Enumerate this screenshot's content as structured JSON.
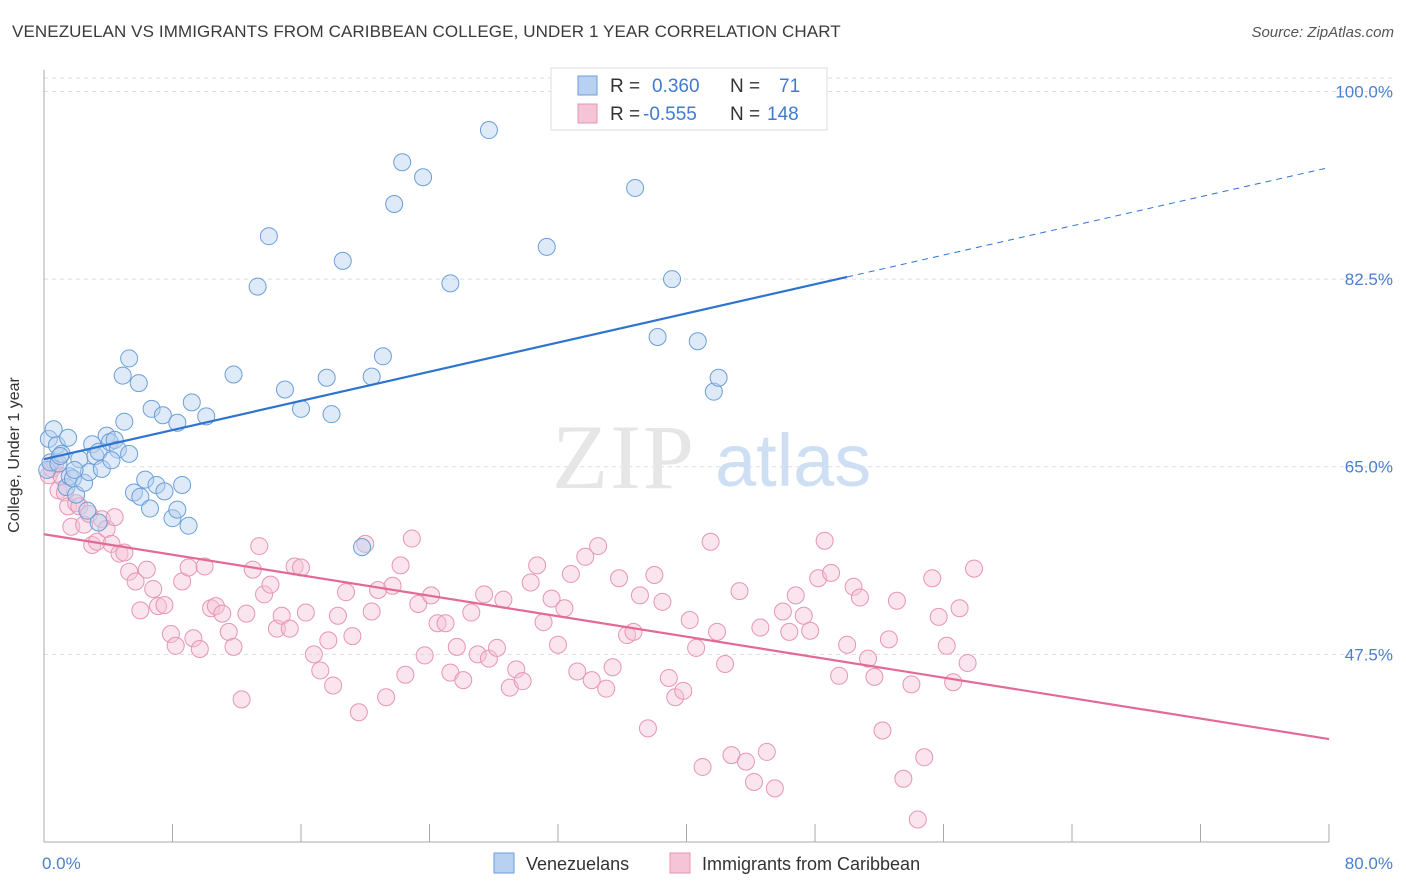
{
  "title": "VENEZUELAN VS IMMIGRANTS FROM CARIBBEAN COLLEGE, UNDER 1 YEAR CORRELATION CHART",
  "source": "Source: ZipAtlas.com",
  "watermark": {
    "zip": "ZIP",
    "atlas": "atlas"
  },
  "colors": {
    "blue": "#6a9fd8",
    "blue_fill": "#b8d1f0",
    "blue_line": "#2e74cf",
    "pink": "#e895b3",
    "pink_fill": "#f5c4d6",
    "pink_line": "#e36a97",
    "tick_label": "#4a7fd0",
    "grid": "#dddddd"
  },
  "legend": {
    "rows": [
      {
        "r_label": "R =",
        "r_value": "0.360",
        "n_label": "N =",
        "n_value": "71"
      },
      {
        "r_label": "R =",
        "r_value": "-0.555",
        "n_label": "N =",
        "n_value": "148"
      }
    ]
  },
  "chart_data": {
    "type": "scatter",
    "title": "VENEZUELAN VS IMMIGRANTS FROM CARIBBEAN COLLEGE, UNDER 1 YEAR CORRELATION CHART",
    "xlabel": "",
    "ylabel": "College, Under 1 year",
    "xlim": [
      0,
      80
    ],
    "ylim": [
      30,
      102
    ],
    "x_tick_labels": [
      "0.0%",
      "80.0%"
    ],
    "y_ticks": [
      47.5,
      65.0,
      82.5,
      100.0
    ],
    "y_tick_labels": [
      "47.5%",
      "65.0%",
      "82.5%",
      "100.0%"
    ],
    "grid": true,
    "legend_position": "top-center",
    "series": [
      {
        "name": "Venezuelans",
        "color": "#6a9fd8",
        "points": [
          [
            0.2,
            64.7
          ],
          [
            0.3,
            67.6
          ],
          [
            0.4,
            65.4
          ],
          [
            0.6,
            68.5
          ],
          [
            0.8,
            67.0
          ],
          [
            0.9,
            65.3
          ],
          [
            1.1,
            66.2
          ],
          [
            1.4,
            63.1
          ],
          [
            1.5,
            67.7
          ],
          [
            1.6,
            64.1
          ],
          [
            1.8,
            63.9
          ],
          [
            2.0,
            62.4
          ],
          [
            2.2,
            65.7
          ],
          [
            2.5,
            63.5
          ],
          [
            2.8,
            64.5
          ],
          [
            3.0,
            67.1
          ],
          [
            3.2,
            66.0
          ],
          [
            3.4,
            66.4
          ],
          [
            3.6,
            64.8
          ],
          [
            3.9,
            67.9
          ],
          [
            4.1,
            67.3
          ],
          [
            4.4,
            67.5
          ],
          [
            4.6,
            66.6
          ],
          [
            5.0,
            69.2
          ],
          [
            5.3,
            66.2
          ],
          [
            5.6,
            62.6
          ],
          [
            6.0,
            62.2
          ],
          [
            6.3,
            63.8
          ],
          [
            6.6,
            61.1
          ],
          [
            7.0,
            63.3
          ],
          [
            7.5,
            62.7
          ],
          [
            8.0,
            60.2
          ],
          [
            8.3,
            61.0
          ],
          [
            8.6,
            63.3
          ],
          [
            9.0,
            59.5
          ],
          [
            1.0,
            66.0
          ],
          [
            1.9,
            64.7
          ],
          [
            2.7,
            60.9
          ],
          [
            3.4,
            59.8
          ],
          [
            4.2,
            65.6
          ],
          [
            4.9,
            73.5
          ],
          [
            5.3,
            75.1
          ],
          [
            5.9,
            72.8
          ],
          [
            6.7,
            70.4
          ],
          [
            7.4,
            69.8
          ],
          [
            8.3,
            69.1
          ],
          [
            9.2,
            71.0
          ],
          [
            10.1,
            69.7
          ],
          [
            11.8,
            73.6
          ],
          [
            13.3,
            81.8
          ],
          [
            14.0,
            86.5
          ],
          [
            15.0,
            72.2
          ],
          [
            16.0,
            70.4
          ],
          [
            17.6,
            73.3
          ],
          [
            17.9,
            69.9
          ],
          [
            18.6,
            84.2
          ],
          [
            19.8,
            57.5
          ],
          [
            20.4,
            73.4
          ],
          [
            21.1,
            75.3
          ],
          [
            21.8,
            89.5
          ],
          [
            22.3,
            93.4
          ],
          [
            23.6,
            92.0
          ],
          [
            25.3,
            82.1
          ],
          [
            27.7,
            96.4
          ],
          [
            31.3,
            85.5
          ],
          [
            39.1,
            82.5
          ],
          [
            36.8,
            91.0
          ],
          [
            38.2,
            77.1
          ],
          [
            40.7,
            76.7
          ],
          [
            41.7,
            72.0
          ],
          [
            42.0,
            73.3
          ]
        ]
      },
      {
        "name": "Immigrants from Caribbean",
        "color": "#e895b3",
        "points": [
          [
            0.3,
            64.2
          ],
          [
            0.5,
            64.8
          ],
          [
            0.7,
            65.3
          ],
          [
            0.9,
            62.8
          ],
          [
            1.1,
            64.1
          ],
          [
            1.3,
            62.6
          ],
          [
            1.5,
            61.3
          ],
          [
            1.7,
            59.4
          ],
          [
            2.0,
            61.6
          ],
          [
            2.2,
            61.3
          ],
          [
            2.5,
            59.6
          ],
          [
            2.8,
            60.6
          ],
          [
            3.0,
            57.7
          ],
          [
            3.3,
            58.0
          ],
          [
            3.6,
            60.1
          ],
          [
            3.9,
            59.2
          ],
          [
            4.2,
            57.8
          ],
          [
            4.4,
            60.3
          ],
          [
            4.7,
            56.9
          ],
          [
            5.0,
            57.0
          ],
          [
            5.3,
            55.2
          ],
          [
            5.7,
            54.3
          ],
          [
            6.0,
            51.6
          ],
          [
            6.4,
            55.4
          ],
          [
            6.8,
            53.6
          ],
          [
            7.1,
            52.0
          ],
          [
            7.5,
            52.1
          ],
          [
            7.9,
            49.4
          ],
          [
            8.2,
            48.3
          ],
          [
            8.6,
            54.3
          ],
          [
            9.0,
            55.6
          ],
          [
            9.3,
            49.0
          ],
          [
            9.7,
            48.0
          ],
          [
            10.0,
            55.7
          ],
          [
            10.4,
            51.8
          ],
          [
            10.7,
            52.0
          ],
          [
            11.1,
            51.3
          ],
          [
            11.5,
            49.6
          ],
          [
            11.8,
            48.2
          ],
          [
            12.3,
            43.3
          ],
          [
            12.6,
            51.3
          ],
          [
            13.0,
            55.4
          ],
          [
            13.4,
            57.6
          ],
          [
            13.7,
            53.1
          ],
          [
            14.1,
            54.0
          ],
          [
            14.5,
            49.9
          ],
          [
            14.8,
            51.1
          ],
          [
            15.3,
            49.9
          ],
          [
            15.6,
            55.7
          ],
          [
            16.0,
            55.6
          ],
          [
            16.3,
            51.4
          ],
          [
            16.8,
            47.5
          ],
          [
            17.2,
            46.0
          ],
          [
            17.7,
            48.8
          ],
          [
            18.0,
            44.6
          ],
          [
            18.3,
            51.1
          ],
          [
            18.8,
            53.3
          ],
          [
            19.2,
            49.2
          ],
          [
            19.6,
            42.1
          ],
          [
            20.0,
            57.8
          ],
          [
            20.4,
            51.5
          ],
          [
            20.8,
            53.5
          ],
          [
            21.3,
            43.5
          ],
          [
            21.7,
            53.9
          ],
          [
            22.2,
            55.8
          ],
          [
            22.5,
            45.6
          ],
          [
            22.9,
            58.3
          ],
          [
            23.3,
            52.2
          ],
          [
            23.7,
            47.4
          ],
          [
            24.1,
            53.0
          ],
          [
            24.5,
            50.4
          ],
          [
            25.0,
            50.4
          ],
          [
            25.3,
            45.8
          ],
          [
            25.7,
            48.2
          ],
          [
            26.1,
            45.1
          ],
          [
            26.6,
            51.4
          ],
          [
            27.0,
            47.5
          ],
          [
            27.4,
            53.1
          ],
          [
            27.7,
            47.1
          ],
          [
            28.2,
            48.1
          ],
          [
            28.6,
            52.6
          ],
          [
            29.0,
            44.4
          ],
          [
            29.4,
            46.1
          ],
          [
            29.8,
            45.0
          ],
          [
            30.3,
            54.2
          ],
          [
            30.7,
            55.8
          ],
          [
            31.1,
            50.5
          ],
          [
            31.6,
            52.7
          ],
          [
            32.0,
            48.4
          ],
          [
            32.4,
            51.8
          ],
          [
            32.8,
            55.0
          ],
          [
            33.2,
            45.9
          ],
          [
            33.7,
            56.6
          ],
          [
            34.1,
            45.1
          ],
          [
            34.5,
            57.6
          ],
          [
            35.0,
            44.3
          ],
          [
            35.4,
            46.3
          ],
          [
            35.8,
            54.6
          ],
          [
            36.3,
            49.3
          ],
          [
            36.7,
            49.6
          ],
          [
            37.1,
            53.0
          ],
          [
            37.6,
            40.6
          ],
          [
            38.0,
            54.9
          ],
          [
            38.5,
            52.4
          ],
          [
            38.9,
            45.3
          ],
          [
            39.3,
            43.5
          ],
          [
            39.8,
            44.1
          ],
          [
            40.2,
            50.7
          ],
          [
            40.6,
            48.1
          ],
          [
            41.0,
            37.0
          ],
          [
            41.5,
            58.0
          ],
          [
            41.9,
            49.6
          ],
          [
            42.4,
            46.6
          ],
          [
            42.8,
            38.1
          ],
          [
            43.3,
            53.4
          ],
          [
            43.7,
            37.5
          ],
          [
            44.2,
            35.6
          ],
          [
            44.6,
            50.0
          ],
          [
            45.0,
            38.4
          ],
          [
            45.5,
            35.0
          ],
          [
            46.0,
            51.5
          ],
          [
            46.4,
            49.6
          ],
          [
            46.8,
            53.0
          ],
          [
            47.3,
            51.1
          ],
          [
            47.7,
            49.7
          ],
          [
            48.2,
            54.6
          ],
          [
            48.6,
            58.1
          ],
          [
            49.0,
            55.1
          ],
          [
            49.5,
            45.5
          ],
          [
            50.0,
            48.4
          ],
          [
            50.4,
            53.8
          ],
          [
            50.8,
            52.8
          ],
          [
            51.3,
            47.1
          ],
          [
            51.7,
            45.4
          ],
          [
            52.2,
            40.4
          ],
          [
            52.6,
            48.9
          ],
          [
            53.1,
            52.5
          ],
          [
            53.5,
            35.9
          ],
          [
            54.0,
            44.7
          ],
          [
            54.4,
            32.1
          ],
          [
            54.8,
            37.9
          ],
          [
            55.3,
            54.6
          ],
          [
            55.7,
            51.0
          ],
          [
            56.2,
            48.3
          ],
          [
            56.6,
            44.9
          ],
          [
            57.0,
            51.8
          ],
          [
            57.5,
            46.7
          ],
          [
            57.9,
            55.5
          ]
        ]
      }
    ],
    "trendlines": [
      {
        "series": "Venezuelans",
        "x": [
          0,
          50
        ],
        "y": [
          65.7,
          82.7
        ],
        "dashed_extension_to": 80
      },
      {
        "series": "Immigrants from Caribbean",
        "x": [
          0,
          80
        ],
        "y": [
          58.7,
          39.6
        ]
      }
    ]
  }
}
